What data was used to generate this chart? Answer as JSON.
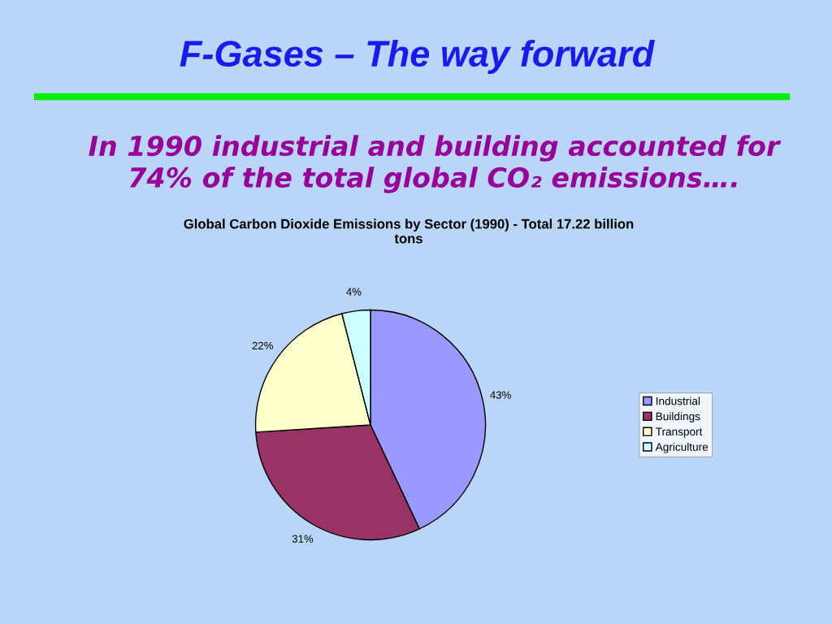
{
  "chart_data": {
    "type": "pie",
    "title": "F-Gases – The way forward",
    "subtitle": "In 1990 industrial and building accounted for 74% of the total global CO₂ emissions….",
    "annotations": [
      "Global Carbon Dioxide Emissions by Sector (1990) - Total 17.22 billion tons"
    ],
    "categories": [
      "Industrial",
      "Buildings",
      "Transport",
      "Agriculture"
    ],
    "values": [
      43,
      31,
      22,
      4
    ],
    "colors": [
      "#9999ff",
      "#993366",
      "#ffffcc",
      "#ccffff"
    ],
    "value_labels": [
      "43%",
      "31%",
      "22%",
      "4%"
    ],
    "legend": "right"
  }
}
